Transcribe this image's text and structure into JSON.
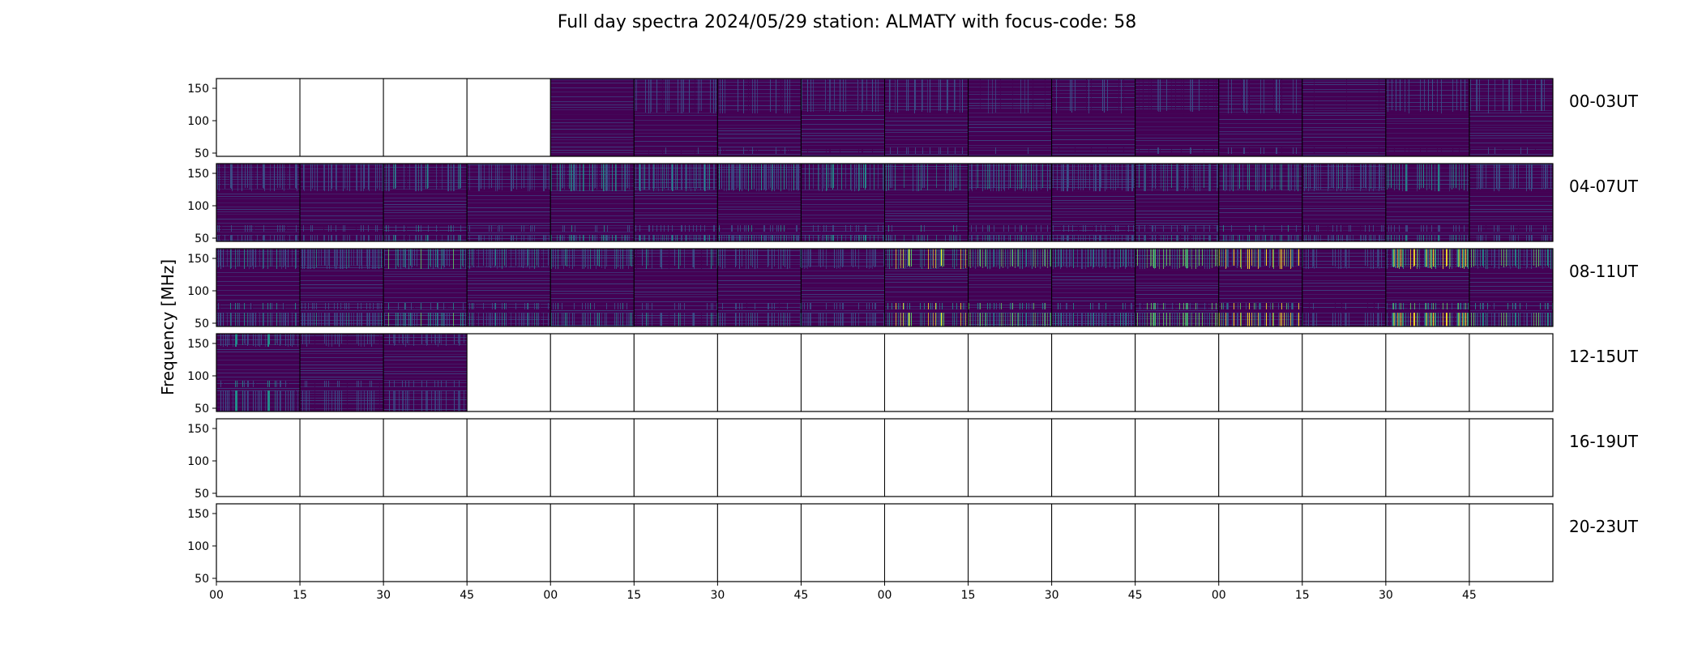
{
  "chart_data": {
    "type": "heatmap",
    "title": "Full day spectra 2024/05/29 station: ALMATY with focus-code: 58",
    "ylabel": "Frequency [MHz]",
    "ylim": [
      45,
      165
    ],
    "yticks": [
      "50",
      "100",
      "150"
    ],
    "xticks": [
      "00",
      "15",
      "30",
      "45",
      "00",
      "15",
      "30",
      "45",
      "00",
      "15",
      "30",
      "45",
      "00",
      "15",
      "30",
      "45"
    ],
    "colormap": [
      "#440154",
      "#3b528b",
      "#21918c",
      "#5ec962",
      "#fde725"
    ],
    "rows": [
      {
        "label": "00-03UT",
        "panels": [
          0,
          0,
          0,
          0,
          1,
          1,
          1,
          1,
          1,
          1,
          1,
          1,
          1,
          1,
          1,
          1
        ]
      },
      {
        "label": "04-07UT",
        "panels": [
          1,
          1,
          1,
          1,
          1,
          1,
          1,
          1,
          1,
          1,
          1,
          1,
          1,
          1,
          1,
          1
        ]
      },
      {
        "label": "08-11UT",
        "panels": [
          1,
          1,
          1,
          1,
          1,
          1,
          1,
          1,
          1,
          1,
          1,
          1,
          1,
          1,
          1,
          1
        ]
      },
      {
        "label": "12-15UT",
        "panels": [
          1,
          1,
          1,
          0,
          0,
          0,
          0,
          0,
          0,
          0,
          0,
          0,
          0,
          0,
          0,
          0
        ]
      },
      {
        "label": "16-19UT",
        "panels": [
          0,
          0,
          0,
          0,
          0,
          0,
          0,
          0,
          0,
          0,
          0,
          0,
          0,
          0,
          0,
          0
        ]
      },
      {
        "label": "20-23UT",
        "panels": [
          0,
          0,
          0,
          0,
          0,
          0,
          0,
          0,
          0,
          0,
          0,
          0,
          0,
          0,
          0,
          0
        ]
      }
    ],
    "panel_intensity": [
      [
        0,
        0,
        0,
        0,
        0.15,
        0.25,
        0.2,
        0.2,
        0.25,
        0.2,
        0.2,
        0.2,
        0.2,
        0.15,
        0.2,
        0.2
      ],
      [
        0.3,
        0.25,
        0.4,
        0.35,
        0.5,
        0.45,
        0.45,
        0.4,
        0.45,
        0.4,
        0.35,
        0.4,
        0.45,
        0.35,
        0.4,
        0.3
      ],
      [
        0.5,
        0.35,
        0.55,
        0.45,
        0.55,
        0.4,
        0.45,
        0.35,
        0.8,
        0.7,
        0.45,
        0.7,
        0.8,
        0.2,
        0.75,
        0.6
      ],
      [
        0.6,
        0.3,
        0.35,
        0,
        0,
        0,
        0,
        0,
        0,
        0,
        0,
        0,
        0,
        0,
        0,
        0
      ],
      [
        0,
        0,
        0,
        0,
        0,
        0,
        0,
        0,
        0,
        0,
        0,
        0,
        0,
        0,
        0,
        0
      ],
      [
        0,
        0,
        0,
        0,
        0,
        0,
        0,
        0,
        0,
        0,
        0,
        0,
        0,
        0,
        0,
        0
      ]
    ]
  }
}
